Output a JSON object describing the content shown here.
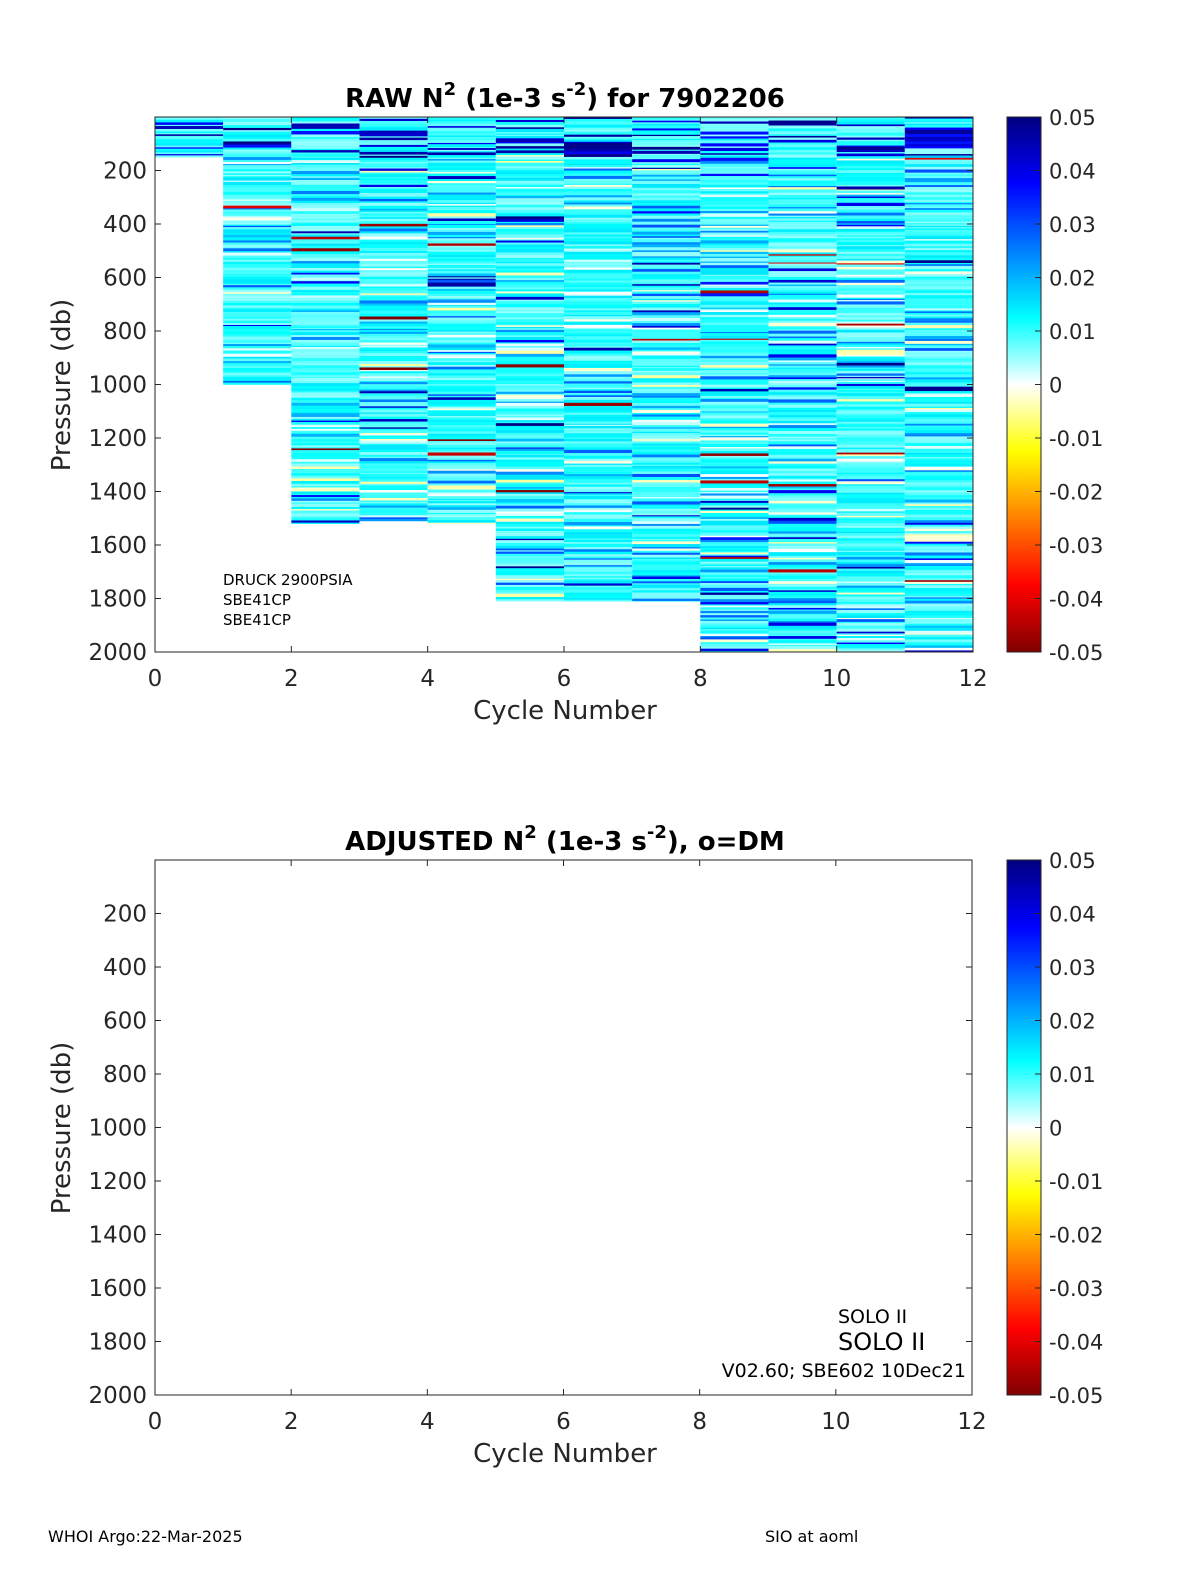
{
  "chart_data": [
    {
      "type": "heatmap",
      "title": {
        "prefix": "RAW N",
        "sup1": "2",
        "mid": " (1e-3 s",
        "sup2": "-2",
        "suffix": ") for 7902206"
      },
      "xlabel": "Cycle Number",
      "ylabel": "Pressure (db)",
      "xlim": [
        0,
        12
      ],
      "ylim": [
        2000,
        0
      ],
      "y_reversed": true,
      "xticks": [
        "0",
        "2",
        "4",
        "6",
        "8",
        "10",
        "12"
      ],
      "yticks": [
        "200",
        "400",
        "600",
        "800",
        "1000",
        "1200",
        "1400",
        "1600",
        "1800",
        "2000"
      ],
      "colorbar": {
        "ticks": [
          "0.05",
          "0.04",
          "0.03",
          "0.02",
          "0.01",
          "0",
          "-0.01",
          "-0.02",
          "-0.03",
          "-0.04",
          "-0.05"
        ],
        "clim": [
          -0.05,
          0.05
        ],
        "colormap": "jet"
      },
      "profiles": [
        {
          "cycle": 0,
          "pmin": 0,
          "pmax": 150
        },
        {
          "cycle": 1,
          "pmin": 0,
          "pmax": 1000
        },
        {
          "cycle": 2,
          "pmin": 0,
          "pmax": 1520
        },
        {
          "cycle": 3,
          "pmin": 0,
          "pmax": 1510
        },
        {
          "cycle": 4,
          "pmin": 0,
          "pmax": 1520
        },
        {
          "cycle": 5,
          "pmin": 0,
          "pmax": 1810
        },
        {
          "cycle": 6,
          "pmin": 0,
          "pmax": 1810
        },
        {
          "cycle": 7,
          "pmin": 0,
          "pmax": 1810
        },
        {
          "cycle": 8,
          "pmin": 0,
          "pmax": 2000
        },
        {
          "cycle": 9,
          "pmin": 0,
          "pmax": 2000
        },
        {
          "cycle": 10,
          "pmin": 0,
          "pmax": 2000
        },
        {
          "cycle": 11,
          "pmin": 0,
          "pmax": 2000
        }
      ],
      "annotations": [
        "DRUCK 2900PSIA",
        "SBE41CP",
        "SBE41CP"
      ]
    },
    {
      "type": "heatmap",
      "title": {
        "prefix": "ADJUSTED N",
        "sup1": "2",
        "mid": " (1e-3 s",
        "sup2": "-2",
        "suffix": "), o=DM"
      },
      "xlabel": "Cycle Number",
      "ylabel": "Pressure (db)",
      "xlim": [
        0,
        12
      ],
      "ylim": [
        2000,
        0
      ],
      "y_reversed": true,
      "xticks": [
        "0",
        "2",
        "4",
        "6",
        "8",
        "10",
        "12"
      ],
      "yticks": [
        "200",
        "400",
        "600",
        "800",
        "1000",
        "1200",
        "1400",
        "1600",
        "1800",
        "2000"
      ],
      "colorbar": {
        "ticks": [
          "0.05",
          "0.04",
          "0.03",
          "0.02",
          "0.01",
          "0",
          "-0.01",
          "-0.02",
          "-0.03",
          "-0.04",
          "-0.05"
        ],
        "clim": [
          -0.05,
          0.05
        ],
        "colormap": "jet"
      },
      "profiles": [],
      "annotations": [
        "SOLO II",
        "SOLO II",
        "V02.60; SBE602 10Dec21"
      ]
    }
  ],
  "footer": {
    "left": "WHOI Argo:22-Mar-2025",
    "right": "SIO at aoml"
  }
}
